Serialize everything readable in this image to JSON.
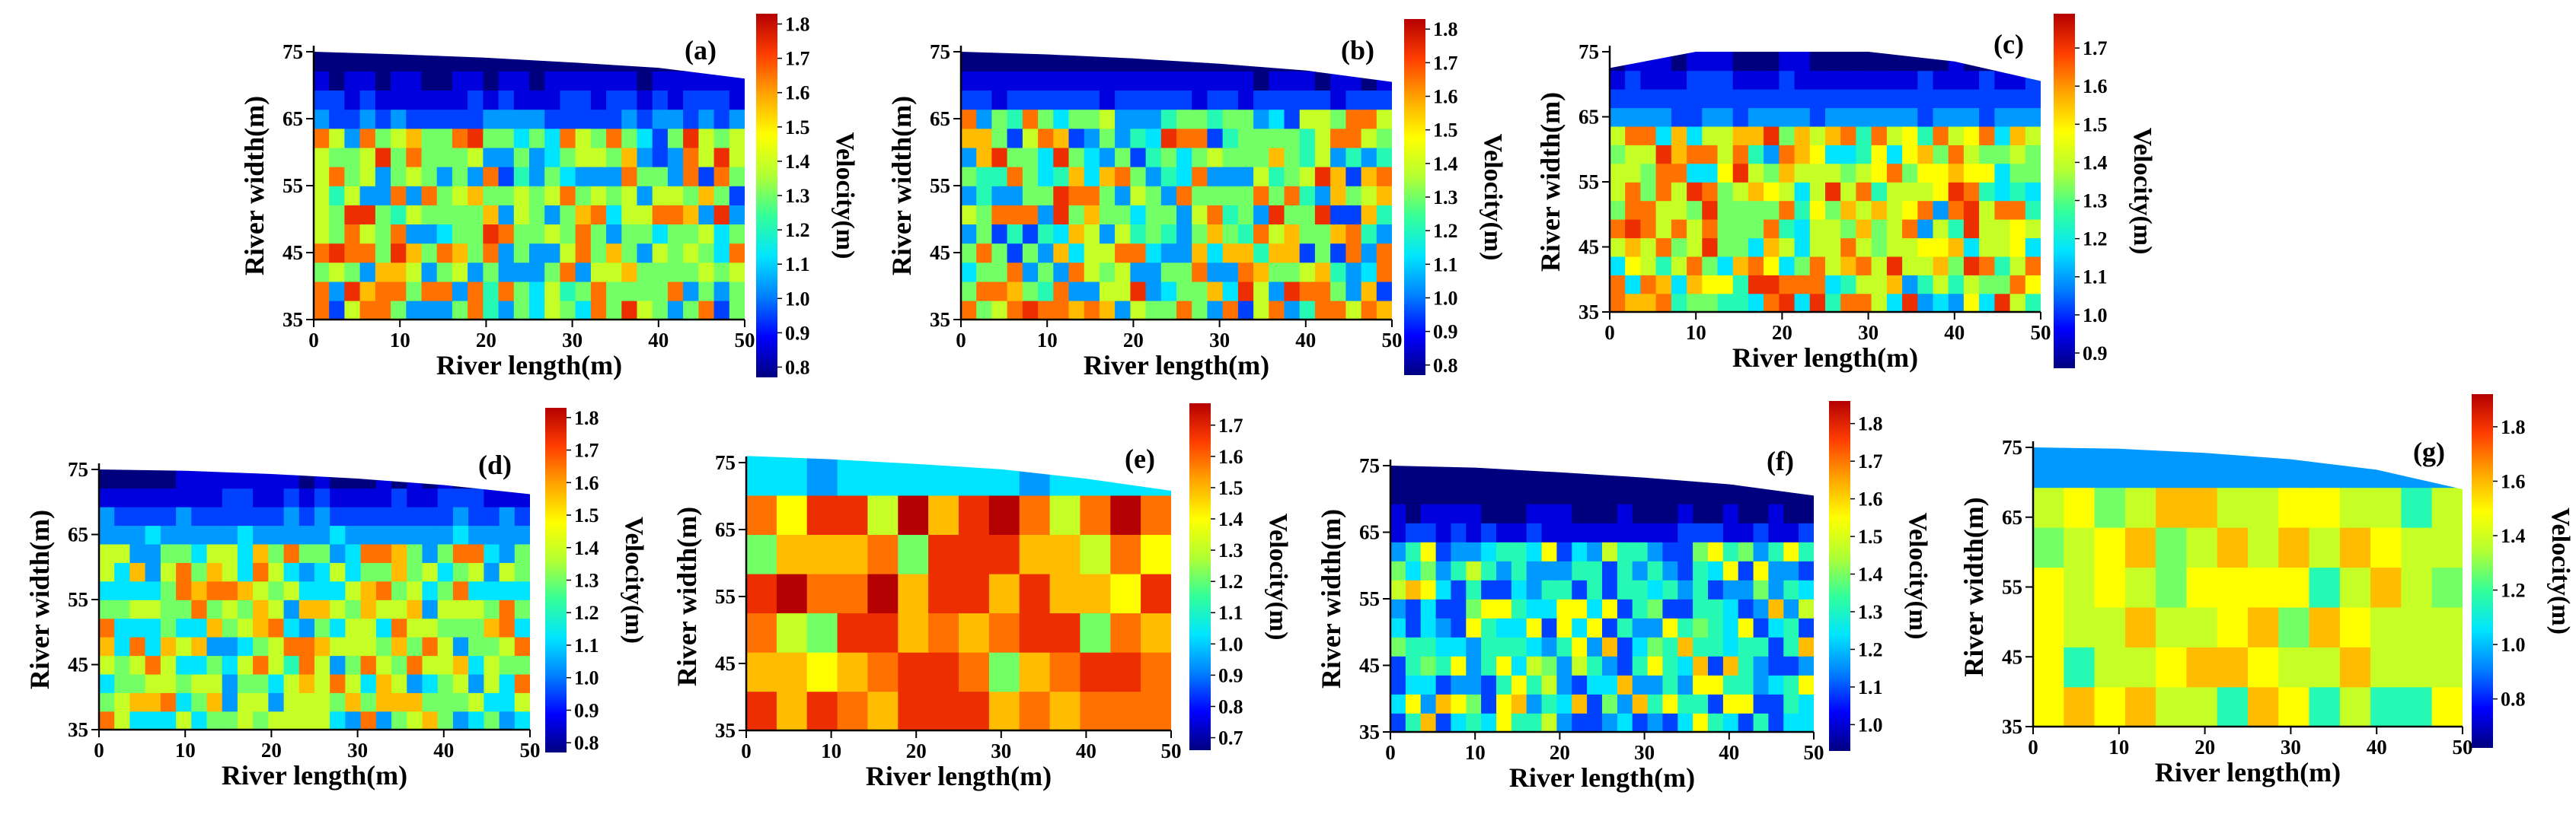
{
  "chart_data": [
    {
      "type": "heatmap",
      "panel_label": "(a)",
      "xlabel": "River length(m)",
      "ylabel": "River width(m)",
      "xlim": [
        0,
        50
      ],
      "ylim": [
        35,
        75
      ],
      "x_ticks": [
        0,
        10,
        20,
        30,
        40,
        50
      ],
      "y_ticks": [
        35,
        45,
        55,
        65,
        75
      ],
      "bank_top": [
        75,
        74.6,
        74.1,
        73.4,
        72.6,
        71.0
      ],
      "colorbar": {
        "label": "Velocity(m)",
        "min": 0.77,
        "max": 1.83,
        "ticks": [
          0.8,
          0.9,
          1.0,
          1.1,
          1.2,
          1.3,
          1.4,
          1.5,
          1.6,
          1.7,
          1.8
        ]
      },
      "field": {
        "low_band": [
          64,
          75
        ],
        "base": 1.32,
        "hot": 1.66,
        "hot_fraction": 0.3,
        "cold": 1.05,
        "cold_fraction": 0.22,
        "grid": [
          28,
          14
        ],
        "seed": 11
      }
    },
    {
      "type": "heatmap",
      "panel_label": "(b)",
      "xlabel": "River length(m)",
      "ylabel": "River width(m)",
      "xlim": [
        0,
        50
      ],
      "ylim": [
        35,
        75
      ],
      "x_ticks": [
        0,
        10,
        20,
        30,
        40,
        50
      ],
      "y_ticks": [
        35,
        45,
        55,
        65,
        75
      ],
      "bank_top": [
        75,
        74.6,
        74.0,
        73.2,
        72.2,
        70.5
      ],
      "colorbar": {
        "label": "Velocity(m)",
        "min": 0.77,
        "max": 1.83,
        "ticks": [
          0.8,
          0.9,
          1.0,
          1.1,
          1.2,
          1.3,
          1.4,
          1.5,
          1.6,
          1.7,
          1.8
        ]
      },
      "field": {
        "low_band": [
          66,
          75
        ],
        "base": 1.3,
        "hot": 1.64,
        "hot_fraction": 0.28,
        "cold": 1.04,
        "cold_fraction": 0.25,
        "grid": [
          28,
          14
        ],
        "seed": 23
      }
    },
    {
      "type": "heatmap",
      "panel_label": "(c)",
      "xlabel": "River length(m)",
      "ylabel": "River width(m)",
      "xlim": [
        0,
        50
      ],
      "ylim": [
        35,
        75
      ],
      "x_ticks": [
        0,
        10,
        20,
        30,
        40,
        50
      ],
      "y_ticks": [
        35,
        45,
        55,
        65,
        75
      ],
      "bank_top": [
        72.5,
        75,
        75,
        75,
        73.5,
        70.5
      ],
      "colorbar": {
        "label": "Velocity(m)",
        "min": 0.86,
        "max": 1.79,
        "ticks": [
          0.9,
          1.0,
          1.1,
          1.2,
          1.3,
          1.4,
          1.5,
          1.6,
          1.7
        ]
      },
      "field": {
        "low_band": [
          63,
          75
        ],
        "base": 1.4,
        "hot": 1.62,
        "hot_fraction": 0.3,
        "cold": 1.18,
        "cold_fraction": 0.2,
        "grid": [
          28,
          14
        ],
        "seed": 37
      }
    },
    {
      "type": "heatmap",
      "panel_label": "(d)",
      "xlabel": "River length(m)",
      "ylabel": "River width(m)",
      "xlim": [
        0,
        50
      ],
      "ylim": [
        35,
        75
      ],
      "x_ticks": [
        0,
        10,
        20,
        30,
        40,
        50
      ],
      "y_ticks": [
        35,
        45,
        55,
        65,
        75
      ],
      "bank_top": [
        75,
        74.8,
        74.3,
        73.6,
        72.6,
        71.2
      ],
      "colorbar": {
        "label": "Velocity(m)",
        "min": 0.77,
        "max": 1.83,
        "ticks": [
          0.8,
          0.9,
          1.0,
          1.1,
          1.2,
          1.3,
          1.4,
          1.5,
          1.6,
          1.7,
          1.8
        ]
      },
      "field": {
        "low_band": [
          65,
          75
        ],
        "base": 1.36,
        "hot": 1.62,
        "hot_fraction": 0.26,
        "cold": 1.1,
        "cold_fraction": 0.24,
        "grid": [
          28,
          14
        ],
        "seed": 51
      }
    },
    {
      "type": "heatmap",
      "panel_label": "(e)",
      "xlabel": "River length(m)",
      "ylabel": "River width(m)",
      "xlim": [
        0,
        50
      ],
      "ylim": [
        35,
        75
      ],
      "x_ticks": [
        0,
        10,
        20,
        30,
        40,
        50
      ],
      "y_ticks": [
        35,
        45,
        55,
        65,
        75
      ],
      "bank_top": [
        76,
        75.5,
        74.8,
        74.0,
        72.6,
        70.8
      ],
      "colorbar": {
        "label": "Velocity(m)",
        "min": 0.66,
        "max": 1.77,
        "ticks": [
          0.7,
          0.8,
          0.9,
          1.0,
          1.1,
          1.2,
          1.3,
          1.4,
          1.5,
          1.6,
          1.7
        ]
      },
      "field": {
        "low_band": [
          68,
          76
        ],
        "base": 1.5,
        "hot": 1.66,
        "hot_fraction": 0.4,
        "cold": 1.24,
        "cold_fraction": 0.18,
        "grid": [
          14,
          7
        ],
        "seed": 67
      }
    },
    {
      "type": "heatmap",
      "panel_label": "(f)",
      "xlabel": "River length(m)",
      "ylabel": "River width(m)",
      "xlim": [
        0,
        50
      ],
      "ylim": [
        35,
        75
      ],
      "x_ticks": [
        0,
        10,
        20,
        30,
        40,
        50
      ],
      "y_ticks": [
        35,
        45,
        55,
        65,
        75
      ],
      "bank_top": [
        75,
        74.7,
        74.0,
        73.2,
        72.2,
        70.5
      ],
      "colorbar": {
        "label": "Velocity(m)",
        "min": 0.93,
        "max": 1.86,
        "ticks": [
          1.0,
          1.1,
          1.2,
          1.3,
          1.4,
          1.5,
          1.6,
          1.7,
          1.8
        ]
      },
      "field": {
        "low_band": [
          63,
          75
        ],
        "base": 1.3,
        "hot": 1.56,
        "hot_fraction": 0.22,
        "cold": 1.13,
        "cold_fraction": 0.3,
        "grid": [
          28,
          14
        ],
        "seed": 79
      }
    },
    {
      "type": "heatmap",
      "panel_label": "(g)",
      "xlabel": "River length(m)",
      "ylabel": "River width(m)",
      "xlim": [
        0,
        50
      ],
      "ylim": [
        35,
        75
      ],
      "x_ticks": [
        0,
        10,
        20,
        30,
        40,
        50
      ],
      "y_ticks": [
        35,
        45,
        55,
        65,
        75
      ],
      "bank_top": [
        75,
        74.8,
        74.2,
        73.3,
        71.8,
        69.0
      ],
      "colorbar": {
        "label": "Velocity(m)",
        "min": 0.62,
        "max": 1.92,
        "ticks": [
          0.8,
          1.0,
          1.2,
          1.4,
          1.6,
          1.8
        ]
      },
      "field": {
        "low_band": [
          67,
          75
        ],
        "base": 1.4,
        "hot": 1.58,
        "hot_fraction": 0.3,
        "cold": 1.18,
        "cold_fraction": 0.22,
        "grid": [
          14,
          7
        ],
        "seed": 97
      }
    }
  ],
  "colormap": [
    "#00007f",
    "#0000ff",
    "#007fff",
    "#00e5ff",
    "#33ff99",
    "#b2ff33",
    "#ffff00",
    "#ffa500",
    "#ff3d00",
    "#b40000"
  ]
}
